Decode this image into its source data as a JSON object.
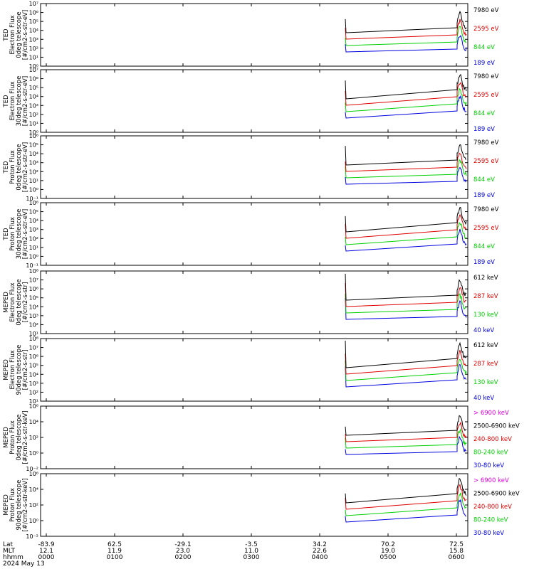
{
  "colors": {
    "black": "#000000",
    "red": "#e00000",
    "green": "#00d000",
    "blue": "#0000e0",
    "magenta": "#e000e0"
  },
  "chart_data": [
    {
      "type": "line",
      "ylabel": [
        "TED",
        "Electron Flux",
        "0deg telescope",
        "[#/cm2-s-str-eV]"
      ],
      "yscale": "log",
      "ylim": [
        1,
        10000000
      ],
      "yticks": [
        "10⁰",
        "10¹",
        "10²",
        "10³",
        "10⁴",
        "10⁵",
        "10⁶",
        "10⁷"
      ],
      "series": [
        {
          "name": "7980 eV",
          "color": "black"
        },
        {
          "name": "2595 eV",
          "color": "red"
        },
        {
          "name": "844 eV",
          "color": "green"
        },
        {
          "name": "189 eV",
          "color": "blue"
        }
      ]
    },
    {
      "type": "line",
      "ylabel": [
        "TED",
        "Electron Flux",
        "30deg telescope",
        "[#/cm2-s-str-eV]"
      ],
      "yscale": "log",
      "ylim": [
        1,
        10000000
      ],
      "yticks": [
        "10⁰",
        "10¹",
        "10²",
        "10³",
        "10⁴",
        "10⁵",
        "10⁶",
        "10⁷"
      ],
      "series": [
        {
          "name": "7980 eV",
          "color": "black"
        },
        {
          "name": "2595 eV",
          "color": "red"
        },
        {
          "name": "844 eV",
          "color": "green"
        },
        {
          "name": "189 eV",
          "color": "blue"
        }
      ]
    },
    {
      "type": "line",
      "ylabel": [
        "TED",
        "Proton Flux",
        "0deg telescope",
        "[#/cm2-s-str-eV]"
      ],
      "yscale": "log",
      "ylim": [
        0.1,
        1000000
      ],
      "yticks": [
        "10⁻¹",
        "10⁰",
        "10¹",
        "10²",
        "10³",
        "10⁴",
        "10⁵",
        "10⁶"
      ],
      "series": [
        {
          "name": "7980 eV",
          "color": "black"
        },
        {
          "name": "2595 eV",
          "color": "red"
        },
        {
          "name": "844 eV",
          "color": "green"
        },
        {
          "name": "189 eV",
          "color": "blue"
        }
      ]
    },
    {
      "type": "line",
      "ylabel": [
        "TED",
        "Proton Flux",
        "30deg telescope",
        "[#/cm2-s-str-eV]"
      ],
      "yscale": "log",
      "ylim": [
        0.1,
        1000000
      ],
      "yticks": [
        "10⁻¹",
        "10⁰",
        "10¹",
        "10²",
        "10³",
        "10⁴",
        "10⁵",
        "10⁶"
      ],
      "series": [
        {
          "name": "7980 eV",
          "color": "black"
        },
        {
          "name": "2595 eV",
          "color": "red"
        },
        {
          "name": "844 eV",
          "color": "green"
        },
        {
          "name": "189 eV",
          "color": "blue"
        }
      ]
    },
    {
      "type": "line",
      "ylabel": [
        "MEPED",
        "Electron Flux",
        "0deg telescope",
        "[#/cm2-s-str]"
      ],
      "yscale": "log",
      "ylim": [
        10,
        100000000
      ],
      "yticks": [
        "10¹",
        "10²",
        "10³",
        "10⁴",
        "10⁵",
        "10⁶",
        "10⁷",
        "10⁸"
      ],
      "series": [
        {
          "name": "612 keV",
          "color": "black"
        },
        {
          "name": "287 keV",
          "color": "red"
        },
        {
          "name": "130 keV",
          "color": "green"
        },
        {
          "name": "40 keV",
          "color": "blue"
        }
      ]
    },
    {
      "type": "line",
      "ylabel": [
        "MEPED",
        "Electron Flux",
        "90deg telescope",
        "[#/cm2-s-str]"
      ],
      "yscale": "log",
      "ylim": [
        10,
        100000000
      ],
      "yticks": [
        "10¹",
        "10²",
        "10³",
        "10⁴",
        "10⁵",
        "10⁶",
        "10⁷",
        "10⁸"
      ],
      "series": [
        {
          "name": "612 keV",
          "color": "black"
        },
        {
          "name": "287 keV",
          "color": "red"
        },
        {
          "name": "130 keV",
          "color": "green"
        },
        {
          "name": "40 keV",
          "color": "blue"
        }
      ]
    },
    {
      "type": "line",
      "ylabel": [
        "MEPED",
        "Proton Flux",
        "0deg telescope",
        "[#/cm2-s-str-keV]"
      ],
      "yscale": "log",
      "ylim": [
        0.01,
        1000000
      ],
      "yticks": [
        "10⁻²",
        "10⁰",
        "10²",
        "10⁴",
        "10⁶"
      ],
      "series": [
        {
          "name": "> 6900 keV",
          "color": "magenta"
        },
        {
          "name": "2500-6900 keV",
          "color": "black"
        },
        {
          "name": "240-800 keV",
          "color": "red"
        },
        {
          "name": "80-240 keV",
          "color": "green"
        },
        {
          "name": "30-80 keV",
          "color": "blue"
        }
      ]
    },
    {
      "type": "line",
      "ylabel": [
        "MEPED",
        "Proton Flux",
        "90deg telescope",
        "[#/cm2-s-str-keV]"
      ],
      "yscale": "log",
      "ylim": [
        0.01,
        1000000
      ],
      "yticks": [
        "10⁻²",
        "10⁰",
        "10²",
        "10⁴",
        "10⁶"
      ],
      "series": [
        {
          "name": "> 6900 keV",
          "color": "magenta"
        },
        {
          "name": "2500-6900 keV",
          "color": "black"
        },
        {
          "name": "240-800 keV",
          "color": "red"
        },
        {
          "name": "80-240 keV",
          "color": "green"
        },
        {
          "name": "30-80 keV",
          "color": "blue"
        }
      ]
    }
  ],
  "x_axis": {
    "row_labels": [
      "Lat",
      "MLT",
      "hhmm",
      "2024 May 13"
    ],
    "ticks": [
      {
        "lat": "-83.9",
        "mlt": "12.1",
        "hhmm": "0000"
      },
      {
        "lat": "62.5",
        "mlt": "11.9",
        "hhmm": "0100"
      },
      {
        "lat": "-29.1",
        "mlt": "23.0",
        "hhmm": "0200"
      },
      {
        "lat": "-3.5",
        "mlt": "11.0",
        "hhmm": "0300"
      },
      {
        "lat": "34.2",
        "mlt": "22.6",
        "hhmm": "0400"
      },
      {
        "lat": "70.2",
        "mlt": "19.0",
        "hhmm": "0500"
      },
      {
        "lat": "72.5",
        "mlt": "15.8",
        "hhmm": "0600"
      }
    ]
  }
}
